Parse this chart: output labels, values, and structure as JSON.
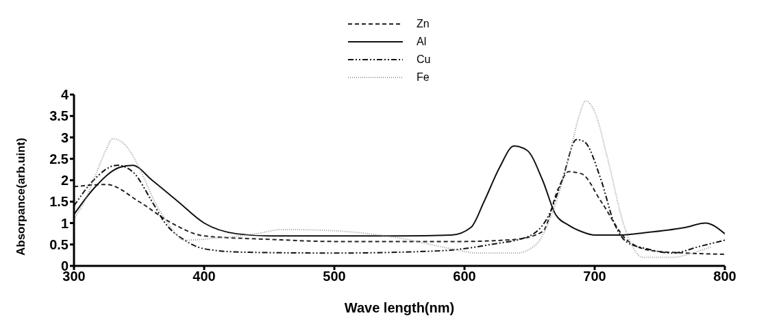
{
  "chart_data": {
    "type": "line",
    "xlabel": "Wave length(nm)",
    "ylabel": "Absorpance(arb.uint)",
    "xlim": [
      300,
      800
    ],
    "xticks": [
      300,
      400,
      500,
      600,
      700,
      800
    ],
    "ylim": [
      0,
      4
    ],
    "yticks": [
      0,
      0.5,
      1,
      1.5,
      2,
      2.5,
      3,
      3.5,
      4
    ],
    "grid": false,
    "legend": "top",
    "marker": "none",
    "series": [
      {
        "name": "Zn",
        "color": "#222222",
        "line_style": "dashed",
        "x": [
          300,
          325,
          350,
          375,
          400,
          450,
          500,
          600,
          630,
          640,
          660,
          672,
          680,
          690,
          705,
          725,
          745,
          770,
          800
        ],
        "values": [
          1.85,
          1.9,
          1.5,
          1.0,
          0.7,
          0.62,
          0.57,
          0.57,
          0.6,
          0.62,
          0.8,
          1.8,
          2.2,
          2.15,
          1.5,
          0.6,
          0.35,
          0.3,
          0.27
        ]
      },
      {
        "name": "Al",
        "color": "#111111",
        "line_style": "solid",
        "x": [
          300,
          315,
          335,
          345,
          360,
          380,
          400,
          425,
          450,
          550,
          590,
          605,
          615,
          627,
          638,
          648,
          660,
          670,
          680,
          690,
          700,
          720,
          740,
          770,
          785,
          800
        ],
        "values": [
          1.2,
          1.8,
          2.3,
          2.35,
          2.0,
          1.5,
          1.0,
          0.75,
          0.7,
          0.7,
          0.72,
          0.9,
          1.5,
          2.3,
          2.8,
          2.7,
          2.0,
          1.2,
          0.95,
          0.8,
          0.72,
          0.72,
          0.78,
          0.9,
          1.0,
          0.75
        ]
      },
      {
        "name": "Cu",
        "color": "#111111",
        "line_style": "dashdot",
        "x": [
          300,
          315,
          333,
          345,
          360,
          370,
          385,
          400,
          430,
          500,
          580,
          620,
          650,
          665,
          675,
          686,
          692,
          705,
          715,
          725,
          740,
          760,
          780,
          800
        ],
        "values": [
          1.4,
          2.0,
          2.35,
          2.2,
          1.5,
          1.0,
          0.6,
          0.4,
          0.32,
          0.3,
          0.35,
          0.5,
          0.7,
          1.2,
          2.0,
          2.95,
          2.9,
          2.0,
          1.0,
          0.55,
          0.4,
          0.3,
          0.45,
          0.6
        ]
      },
      {
        "name": "Fe",
        "color": "#999999",
        "line_style": "dotted",
        "x": [
          300,
          308,
          315,
          323,
          330,
          340,
          350,
          362,
          372,
          385,
          410,
          440,
          460,
          500,
          550,
          590,
          610,
          640,
          655,
          667,
          680,
          688,
          693,
          700,
          710,
          722,
          730,
          737,
          760,
          775,
          790
        ],
        "values": [
          1.1,
          1.5,
          2.0,
          2.6,
          2.97,
          2.8,
          2.3,
          1.5,
          1.0,
          0.6,
          0.65,
          0.75,
          0.85,
          0.82,
          0.65,
          0.4,
          0.3,
          0.3,
          0.5,
          1.2,
          2.5,
          3.5,
          3.85,
          3.6,
          2.5,
          1.0,
          0.4,
          0.2,
          0.2,
          0.3,
          0.45
        ]
      }
    ]
  }
}
